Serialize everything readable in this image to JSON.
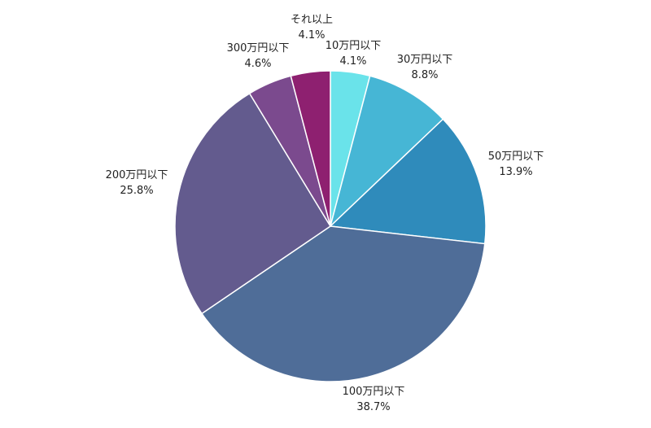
{
  "chart_data": {
    "type": "pie",
    "title": "",
    "start_angle_deg": 0,
    "direction": "clockwise",
    "slices": [
      {
        "label": "10万円以下",
        "value": 4.1,
        "display": "4.1%",
        "color": "#6ae3ea"
      },
      {
        "label": "30万円以下",
        "value": 8.8,
        "display": "8.8%",
        "color": "#46b6d5"
      },
      {
        "label": "50万円以下",
        "value": 13.9,
        "display": "13.9%",
        "color": "#2f8bbb"
      },
      {
        "label": "100万円以下",
        "value": 38.7,
        "display": "38.7%",
        "color": "#4f6d98"
      },
      {
        "label": "200万円以下",
        "value": 25.8,
        "display": "25.8%",
        "color": "#635b8e"
      },
      {
        "label": "300万円以下",
        "value": 4.6,
        "display": "4.6%",
        "color": "#7b4a8e"
      },
      {
        "label": "それ以上",
        "value": 4.1,
        "display": "4.1%",
        "color": "#8e2070"
      }
    ]
  }
}
